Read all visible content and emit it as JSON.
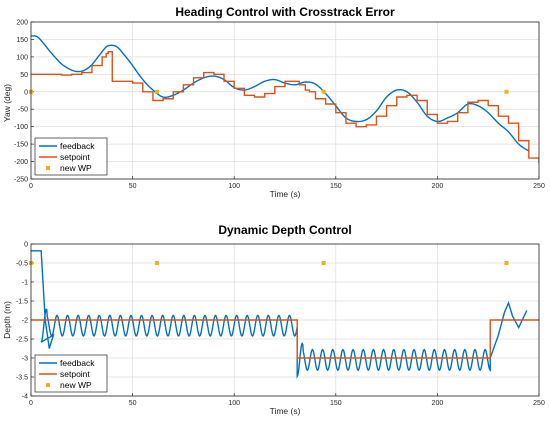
{
  "colors": {
    "feedback": "#0072BD",
    "setpoint": "#D95319",
    "wp": "#EDB120",
    "grid": "#dcdcdc",
    "axis": "#262626"
  },
  "chart_data": [
    {
      "type": "line",
      "title": "Heading Control with Crosstrack Error",
      "xlabel": "Time (s)",
      "ylabel": "Yaw (deg)",
      "xlim": [
        0,
        250
      ],
      "ylim": [
        -250,
        200
      ],
      "xticks": [
        0,
        50,
        100,
        150,
        200,
        250
      ],
      "yticks": [
        200,
        150,
        100,
        50,
        0,
        -50,
        -100,
        -150,
        -200,
        -250
      ],
      "grid": true,
      "legend_position": "bottom-left",
      "legend": [
        "feedback",
        "setpoint",
        "new WP"
      ],
      "series": [
        {
          "name": "feedback",
          "style": "smooth",
          "x": [
            0,
            3,
            6,
            9,
            12,
            15,
            18,
            21,
            24,
            27,
            30,
            33,
            36,
            38,
            42,
            46,
            50,
            55,
            60,
            65,
            70,
            75,
            80,
            85,
            90,
            95,
            100,
            105,
            110,
            115,
            120,
            125,
            130,
            135,
            140,
            145,
            150,
            155,
            160,
            165,
            170,
            175,
            180,
            185,
            190,
            195,
            200,
            205,
            210,
            215,
            220,
            225,
            230,
            235,
            240,
            245
          ],
          "y": [
            160,
            158,
            140,
            118,
            98,
            80,
            68,
            60,
            58,
            64,
            78,
            100,
            122,
            132,
            130,
            105,
            75,
            35,
            5,
            -15,
            -10,
            5,
            25,
            40,
            45,
            35,
            12,
            5,
            15,
            30,
            35,
            25,
            20,
            28,
            22,
            -5,
            -40,
            -75,
            -85,
            -80,
            -55,
            -15,
            5,
            0,
            -30,
            -70,
            -85,
            -75,
            -60,
            -35,
            -40,
            -60,
            -90,
            -115,
            -150,
            -170
          ]
        },
        {
          "name": "setpoint",
          "style": "step",
          "x": [
            0,
            15,
            20,
            25,
            30,
            35,
            37,
            38,
            40,
            50,
            55,
            60,
            65,
            70,
            75,
            80,
            85,
            90,
            95,
            100,
            105,
            110,
            115,
            120,
            125,
            130,
            132,
            135,
            137,
            140,
            145,
            150,
            155,
            160,
            165,
            170,
            175,
            180,
            185,
            190,
            195,
            200,
            205,
            210,
            215,
            220,
            225,
            230,
            235,
            240,
            245,
            250
          ],
          "y": [
            50,
            48,
            50,
            55,
            75,
            100,
            110,
            115,
            30,
            25,
            0,
            -25,
            -20,
            0,
            20,
            40,
            55,
            50,
            30,
            10,
            -10,
            -15,
            -5,
            15,
            30,
            30,
            20,
            5,
            0,
            -20,
            -35,
            -60,
            -90,
            -100,
            -95,
            -70,
            -40,
            -15,
            -10,
            -25,
            -65,
            -90,
            -85,
            -60,
            -30,
            -25,
            -40,
            -70,
            -90,
            -140,
            -190,
            -205
          ]
        },
        {
          "name": "new WP",
          "style": "marker",
          "x": [
            0,
            62,
            144,
            234
          ],
          "y": [
            0,
            0,
            0,
            0
          ]
        }
      ]
    },
    {
      "type": "line",
      "title": "Dynamic Depth Control",
      "xlabel": "Time (s)",
      "ylabel": "Depth (m)",
      "xlim": [
        0,
        250
      ],
      "ylim": [
        -4,
        0
      ],
      "xticks": [
        0,
        50,
        100,
        150,
        200,
        250
      ],
      "yticks": [
        0,
        -0.5,
        -1,
        -1.5,
        -2,
        -2.5,
        -3,
        -3.5,
        -4
      ],
      "grid": true,
      "legend_position": "bottom-left",
      "legend": [
        "feedback",
        "setpoint",
        "new WP"
      ],
      "series": [
        {
          "name": "feedback",
          "style": "oscillation",
          "description_free": true,
          "segments": [
            {
              "x_from": 0,
              "x_to": 5,
              "y": -0.18
            },
            {
              "x_from": 5,
              "x_to": 131,
              "mean": -2.15,
              "amp": 0.27,
              "period": 5.2
            },
            {
              "x_from": 131,
              "x_to": 226,
              "mean": -3.05,
              "amp": 0.27,
              "period": 5.0
            },
            {
              "x_from": 226,
              "x_to": 244,
              "y_points": [
                [
                  226,
                  -3.0
                ],
                [
                  230,
                  -2.4
                ],
                [
                  233,
                  -1.8
                ],
                [
                  235,
                  -1.55
                ],
                [
                  237,
                  -1.9
                ],
                [
                  240,
                  -2.2
                ],
                [
                  244,
                  -1.75
                ]
              ]
            }
          ]
        },
        {
          "name": "setpoint",
          "style": "step",
          "x": [
            0,
            131,
            131,
            226,
            226,
            250
          ],
          "y": [
            -2,
            -2,
            -3,
            -3,
            -2,
            -2
          ]
        },
        {
          "name": "new WP",
          "style": "marker",
          "x": [
            0,
            62,
            144,
            234
          ],
          "y": [
            -0.5,
            -0.5,
            -0.5,
            -0.5
          ]
        }
      ]
    }
  ]
}
